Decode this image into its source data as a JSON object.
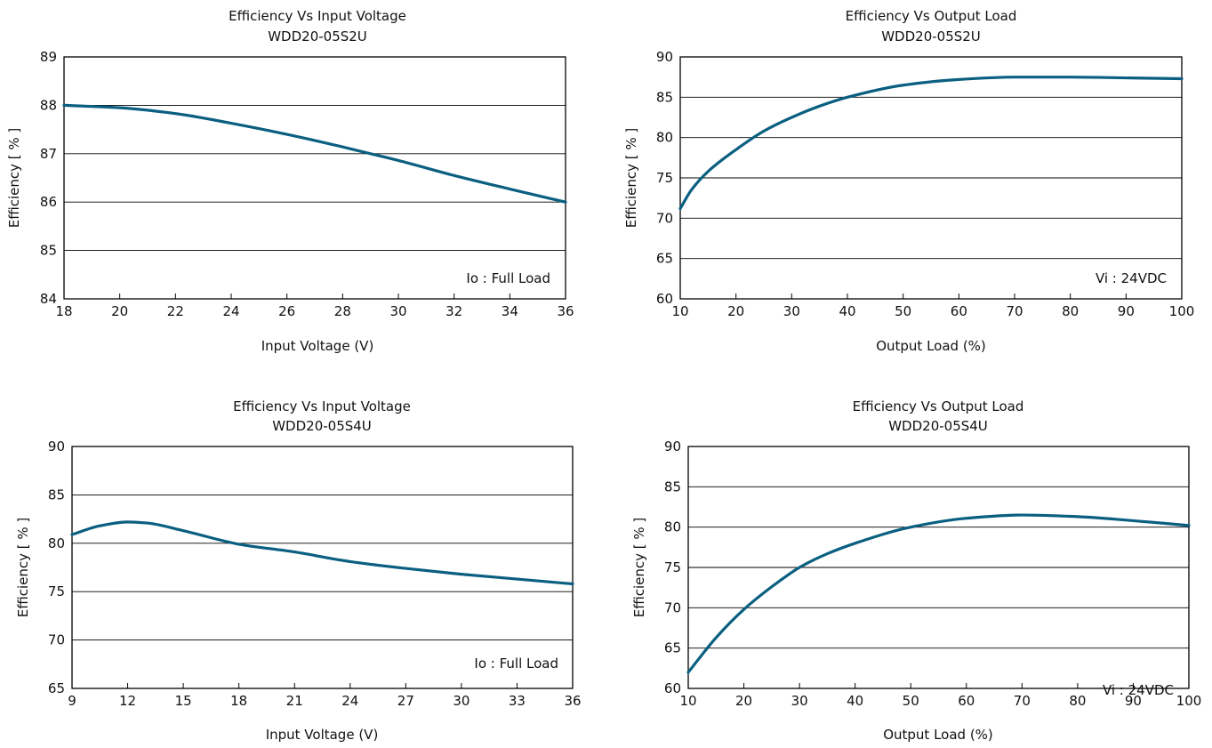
{
  "colors": {
    "curve": "#0a5f80",
    "grid": "#000000"
  },
  "chart_data": [
    {
      "type": "line",
      "title": "Efficiency Vs Input Voltage",
      "subtitle": "WDD20-05S2U",
      "xlabel": "Input Voltage (V)",
      "ylabel": "Efficiency [ % ]",
      "xlim": [
        18,
        36
      ],
      "ylim": [
        84,
        89
      ],
      "xticks": [
        18,
        20,
        22,
        24,
        26,
        28,
        30,
        32,
        34,
        36
      ],
      "yticks": [
        84,
        85,
        86,
        87,
        88,
        89
      ],
      "grid": "horizontal",
      "annotation": "Io : Full Load",
      "series": [
        {
          "x": [
            18,
            20,
            22,
            24,
            26,
            28,
            29,
            30,
            32,
            34,
            36
          ],
          "y": [
            88.0,
            87.95,
            87.83,
            87.63,
            87.4,
            87.14,
            87.0,
            86.86,
            86.55,
            86.27,
            86.0
          ]
        }
      ]
    },
    {
      "type": "line",
      "title": "Efficiency Vs Output Load",
      "subtitle": "WDD20-05S2U",
      "xlabel": "Output Load (%)",
      "ylabel": "Efficiency [ % ]",
      "xlim": [
        10,
        100
      ],
      "ylim": [
        60,
        90
      ],
      "xticks": [
        10,
        20,
        30,
        40,
        50,
        60,
        70,
        80,
        90,
        100
      ],
      "yticks": [
        60,
        65,
        70,
        75,
        80,
        85,
        90
      ],
      "grid": "horizontal",
      "annotation": "Vi : 24VDC",
      "series": [
        {
          "x": [
            10,
            12,
            15,
            20,
            25,
            30,
            35,
            40,
            50,
            60,
            70,
            80,
            90,
            100
          ],
          "y": [
            71.2,
            73.5,
            75.8,
            78.5,
            80.8,
            82.5,
            83.9,
            85.0,
            86.5,
            87.2,
            87.5,
            87.5,
            87.4,
            87.3
          ]
        }
      ]
    },
    {
      "type": "line",
      "title": "Efficiency Vs Input Voltage",
      "subtitle": "WDD20-05S4U",
      "xlabel": "Input Voltage (V)",
      "ylabel": "Efficiency [ % ]",
      "xlim": [
        9,
        36
      ],
      "ylim": [
        65,
        90
      ],
      "xticks": [
        9,
        12,
        15,
        18,
        21,
        24,
        27,
        30,
        33,
        36
      ],
      "yticks": [
        65,
        70,
        75,
        80,
        85,
        90
      ],
      "grid": "horizontal",
      "annotation": "Io : Full Load",
      "series": [
        {
          "x": [
            9,
            10.5,
            12,
            13,
            15,
            18,
            21,
            24,
            27,
            30,
            33,
            36
          ],
          "y": [
            80.9,
            81.8,
            82.2,
            82.1,
            81.3,
            79.9,
            79.1,
            78.1,
            77.4,
            76.8,
            76.3,
            75.8
          ]
        }
      ]
    },
    {
      "type": "line",
      "title": "Efficiency Vs Output Load",
      "subtitle": "WDD20-05S4U",
      "xlabel": "Output Load (%)",
      "ylabel": "Efficiency [ % ]",
      "xlim": [
        10,
        100
      ],
      "ylim": [
        60,
        90
      ],
      "xticks": [
        10,
        20,
        30,
        40,
        50,
        60,
        70,
        80,
        90,
        100
      ],
      "yticks": [
        60,
        65,
        70,
        75,
        80,
        85,
        90
      ],
      "grid": "horizontal",
      "annotation": "Vi : 24VDC",
      "series": [
        {
          "x": [
            10,
            15,
            20,
            25,
            30,
            35,
            40,
            50,
            60,
            70,
            80,
            90,
            100
          ],
          "y": [
            62.0,
            66.3,
            69.8,
            72.6,
            75.0,
            76.7,
            78.0,
            80.0,
            81.1,
            81.5,
            81.3,
            80.8,
            80.2
          ]
        }
      ]
    }
  ]
}
